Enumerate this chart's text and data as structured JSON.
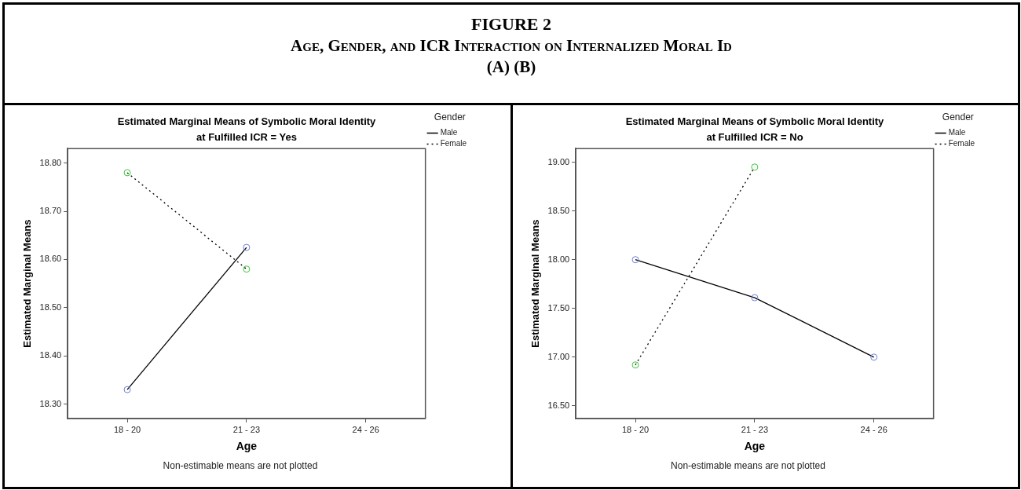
{
  "chart_data": [
    {
      "type": "other",
      "title": "FIGURE 2",
      "subtitle": "Age, Gender, and ICR Interaction on Internalized Moral Id",
      "annotations": [
        "(A) (B)"
      ]
    },
    {
      "type": "line",
      "title": "Estimated Marginal Means of Symbolic Moral Identity",
      "subtitle": "at Fulfilled ICR = Yes",
      "xlabel": "Age",
      "ylabel": "Estimated Marginal Means",
      "legend_title": "Gender",
      "legend": "right",
      "marker": "circle",
      "grid": false,
      "categories": [
        "18 - 20",
        "21 - 23",
        "24 - 26"
      ],
      "ylim": [
        18.27,
        18.83
      ],
      "yticks": [
        {
          "value": 18.3,
          "label": "18.30"
        },
        {
          "value": 18.4,
          "label": "18.40"
        },
        {
          "value": 18.5,
          "label": "18.50"
        },
        {
          "value": 18.6,
          "label": "18.60"
        },
        {
          "value": 18.7,
          "label": "18.70"
        },
        {
          "value": 18.8,
          "label": "18.80"
        }
      ],
      "series": [
        {
          "name": "Male",
          "color": "#000000",
          "colors": [
            "#6f7fd8",
            "#6f7fd8",
            null
          ],
          "line_style": "solid",
          "values": [
            18.33,
            18.625,
            null
          ]
        },
        {
          "name": "Female",
          "color": "#000000",
          "colors": [
            "#3cc83c",
            "#3cc83c",
            null
          ],
          "line_style": "dotted",
          "values": [
            18.78,
            18.58,
            null
          ]
        }
      ],
      "annotations": [
        "Non-estimable means are not plotted"
      ]
    },
    {
      "type": "line",
      "title": "Estimated Marginal Means of Symbolic Moral Identity",
      "subtitle": "at Fulfilled ICR = No",
      "xlabel": "Age",
      "ylabel": "Estimated Marginal Means",
      "legend_title": "Gender",
      "legend": "right",
      "marker": "circle",
      "grid": false,
      "categories": [
        "18 - 20",
        "21 - 23",
        "24 - 26"
      ],
      "ylim": [
        16.37,
        19.14
      ],
      "yticks": [
        {
          "value": 16.5,
          "label": "16.50"
        },
        {
          "value": 17,
          "label": "17.00"
        },
        {
          "value": 17.5,
          "label": "17.50"
        },
        {
          "value": 18,
          "label": "18.00"
        },
        {
          "value": 18.5,
          "label": "18.50"
        },
        {
          "value": 19,
          "label": "19.00"
        }
      ],
      "series": [
        {
          "name": "Male",
          "color": "#000000",
          "colors": [
            "#6f7fd8",
            "#6f7fd8",
            "#6f7fd8"
          ],
          "line_style": "solid",
          "values": [
            18.0,
            17.61,
            17.0
          ]
        },
        {
          "name": "Female",
          "color": "#000000",
          "colors": [
            "#3cc83c",
            "#3cc83c",
            null
          ],
          "line_style": "dotted",
          "values": [
            16.92,
            18.95,
            null
          ]
        }
      ],
      "annotations": [
        "Non-estimable means are not plotted"
      ]
    }
  ]
}
